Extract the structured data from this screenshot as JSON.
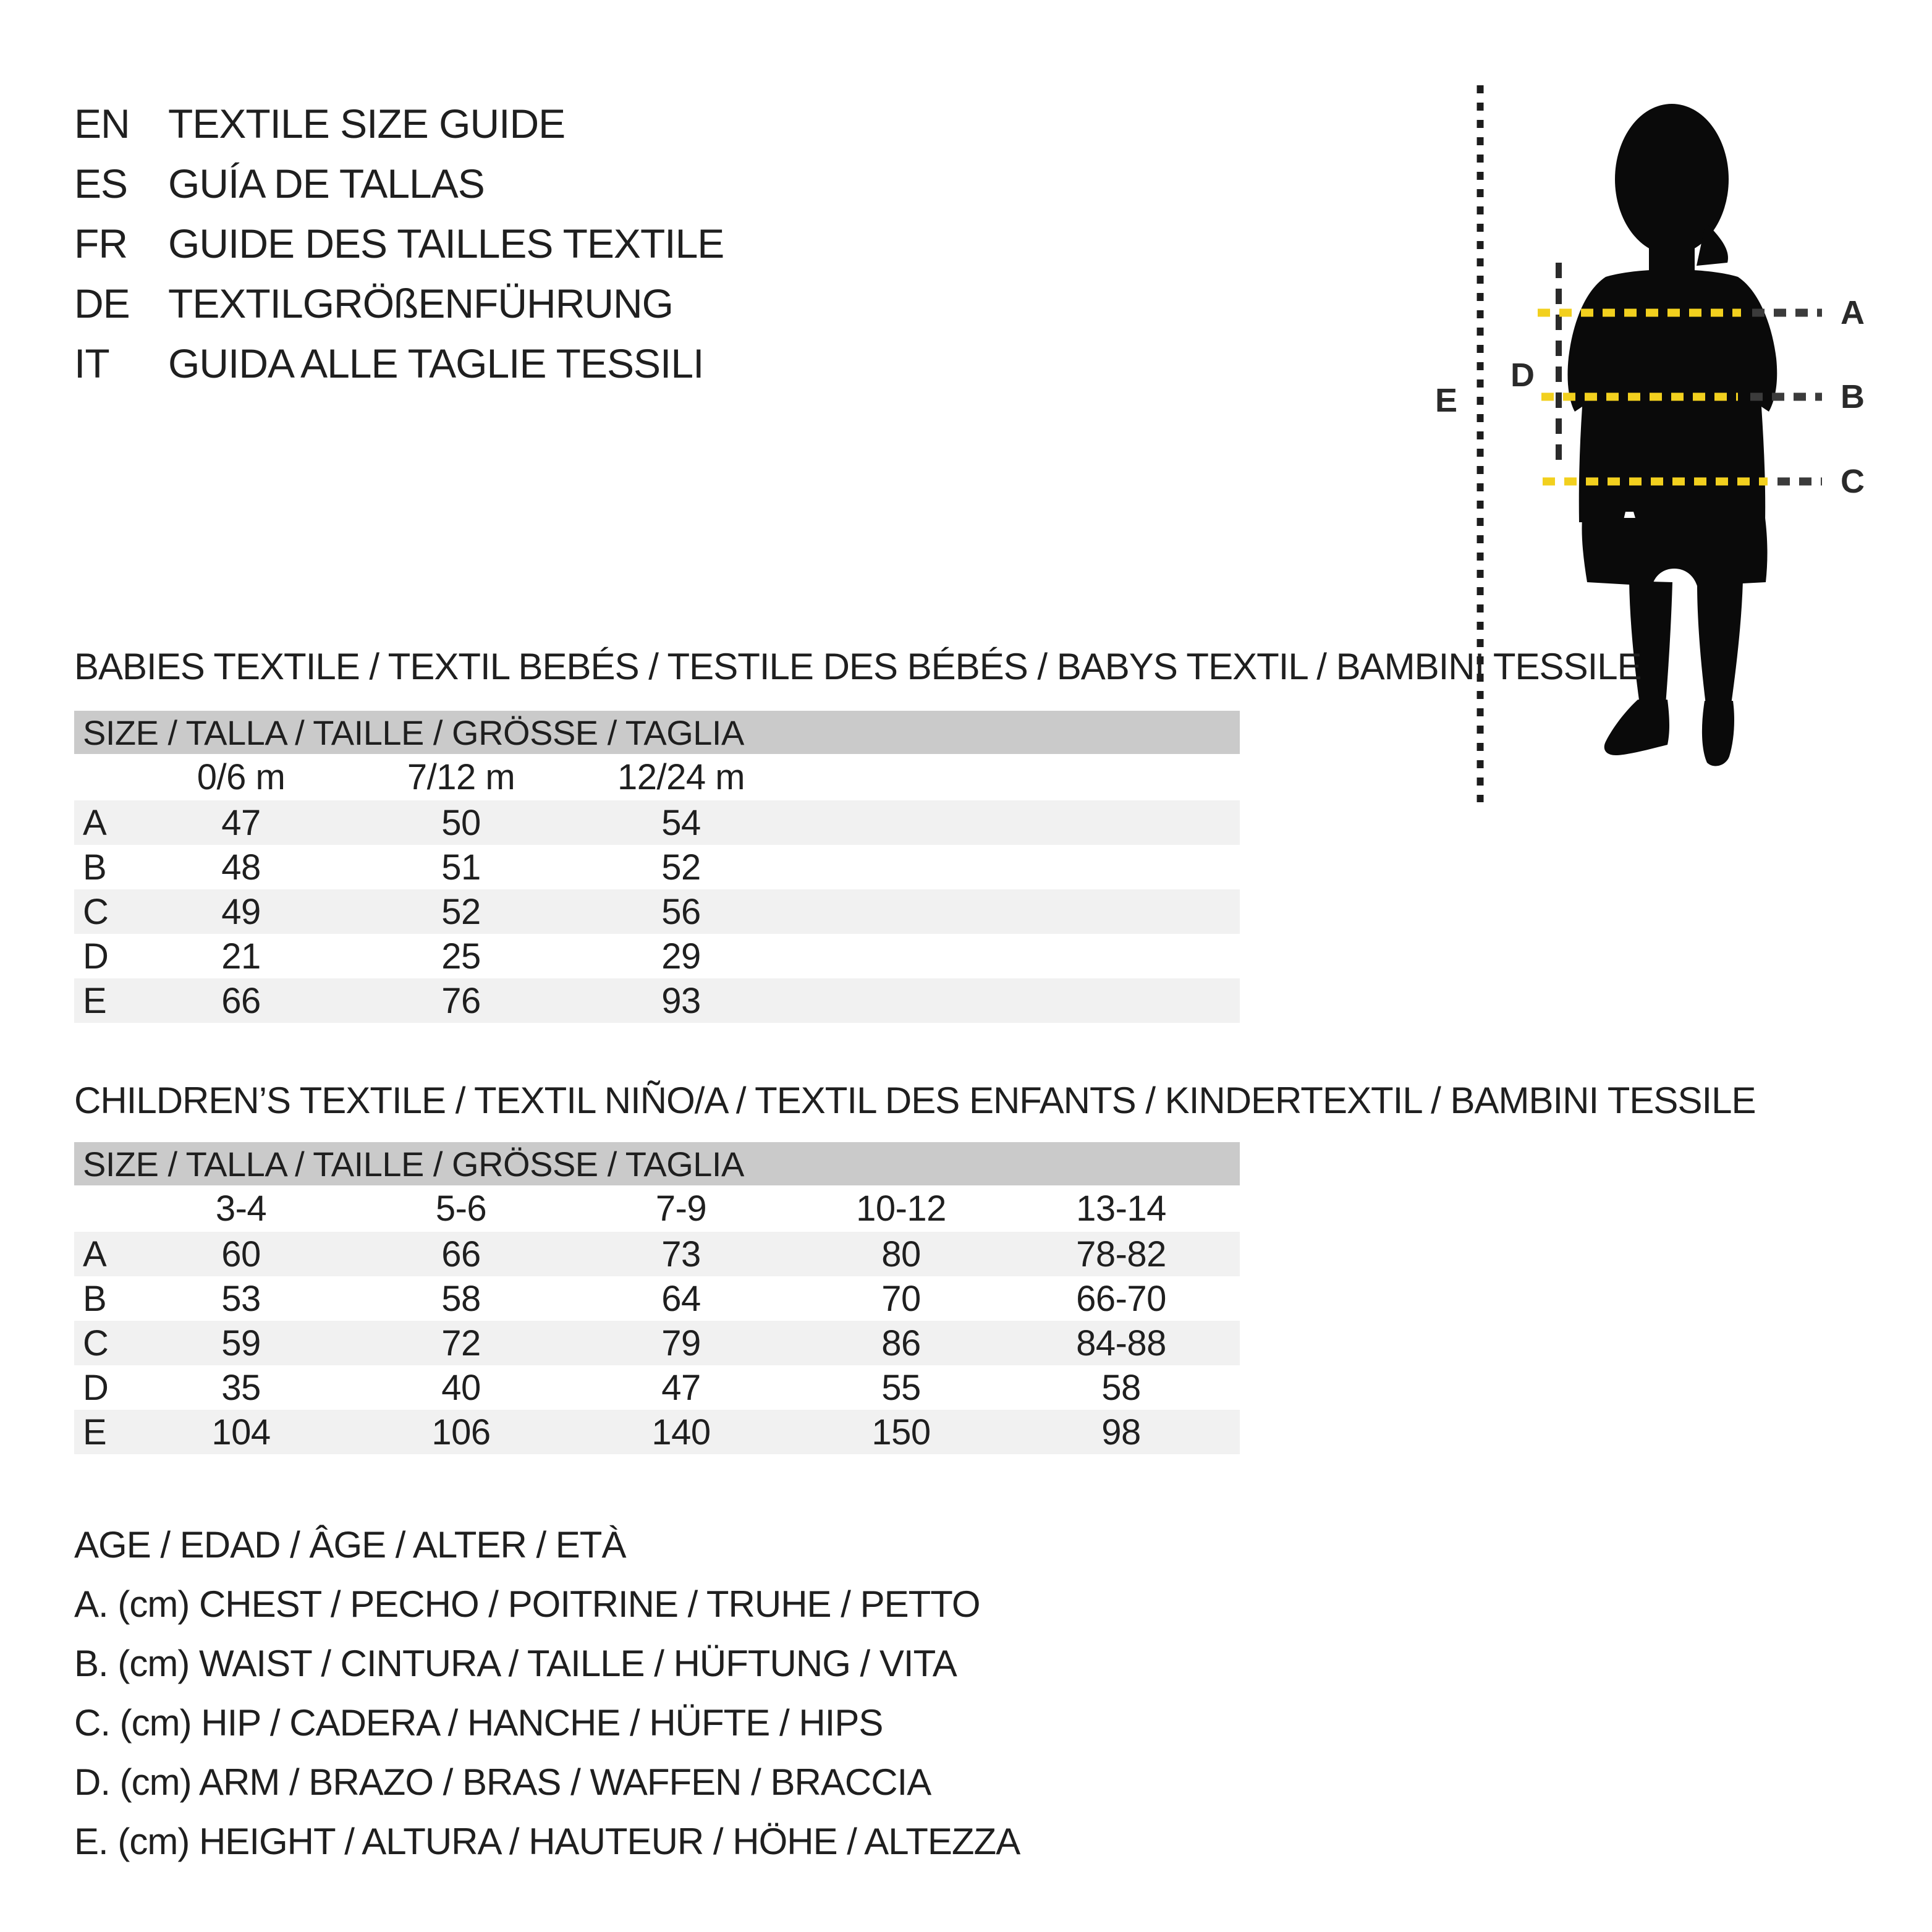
{
  "colors": {
    "ink": "#1f1f1f",
    "accent_yellow": "#f2d01e",
    "dash_gray": "#3b3b3b",
    "table_header_bg": "#cacaca",
    "row_alt_bg": "#f1f1f1",
    "silhouette": "#0a0a0a",
    "background": "#ffffff"
  },
  "header": {
    "languages": [
      {
        "code": "EN",
        "title": "TEXTILE SIZE GUIDE"
      },
      {
        "code": "ES",
        "title": "GUÍA DE TALLAS"
      },
      {
        "code": "FR",
        "title": "GUIDE DES TAILLES TEXTILE"
      },
      {
        "code": "DE",
        "title": "TEXTILGRÖßENFÜHRUNG"
      },
      {
        "code": "IT",
        "title": "GUIDA ALLE TAGLIE TESSILI"
      }
    ]
  },
  "figure": {
    "description": "child silhouette with dotted measurement lines",
    "labels": {
      "a": "A",
      "b": "B",
      "c": "C",
      "d": "D",
      "e": "E"
    }
  },
  "babies_section": {
    "heading": "BABIES TEXTILE / TEXTIL BEBÉS / TESTILE DES BÉBÉS / BABYS TEXTIL / BAMBINI TESSILE",
    "table": {
      "size_header": "SIZE / TALLA / TAILLE / GRÖSSE / TAGLIA",
      "columns": [
        "0/6 m",
        "7/12 m",
        "12/24 m"
      ],
      "rows": [
        {
          "label": "A",
          "values": [
            "47",
            "50",
            "54"
          ]
        },
        {
          "label": "B",
          "values": [
            "48",
            "51",
            "52"
          ]
        },
        {
          "label": "C",
          "values": [
            "49",
            "52",
            "56"
          ]
        },
        {
          "label": "D",
          "values": [
            "21",
            "25",
            "29"
          ]
        },
        {
          "label": "E",
          "values": [
            "66",
            "76",
            "93"
          ]
        }
      ]
    }
  },
  "children_section": {
    "heading": "CHILDREN’S TEXTILE / TEXTIL NIÑO/A / TEXTIL DES ENFANTS / KINDERTEXTIL / BAMBINI TESSILE",
    "table": {
      "size_header": "SIZE / TALLA / TAILLE / GRÖSSE / TAGLIA",
      "columns": [
        "3-4",
        "5-6",
        "7-9",
        "10-12",
        "13-14"
      ],
      "rows": [
        {
          "label": "A",
          "values": [
            "60",
            "66",
            "73",
            "80",
            "78-82"
          ]
        },
        {
          "label": "B",
          "values": [
            "53",
            "58",
            "64",
            "70",
            "66-70"
          ]
        },
        {
          "label": "C",
          "values": [
            "59",
            "72",
            "79",
            "86",
            "84-88"
          ]
        },
        {
          "label": "D",
          "values": [
            "35",
            "40",
            "47",
            "55",
            "58"
          ]
        },
        {
          "label": "E",
          "values": [
            "104",
            "106",
            "140",
            "150",
            "98"
          ]
        }
      ]
    }
  },
  "legend": {
    "lines": [
      "AGE / EDAD / ÂGE / ALTER / ETÀ",
      "A. (cm) CHEST / PECHO / POITRINE / TRUHE / PETTO",
      "B. (cm) WAIST / CINTURA / TAILLE / HÜFTUNG / VITA",
      "C. (cm) HIP / CADERA / HANCHE / HÜFTE / HIPS",
      "D. (cm) ARM / BRAZO / BRAS / WAFFEN / BRACCIA",
      "E. (cm) HEIGHT / ALTURA / HAUTEUR / HÖHE / ALTEZZA"
    ]
  }
}
